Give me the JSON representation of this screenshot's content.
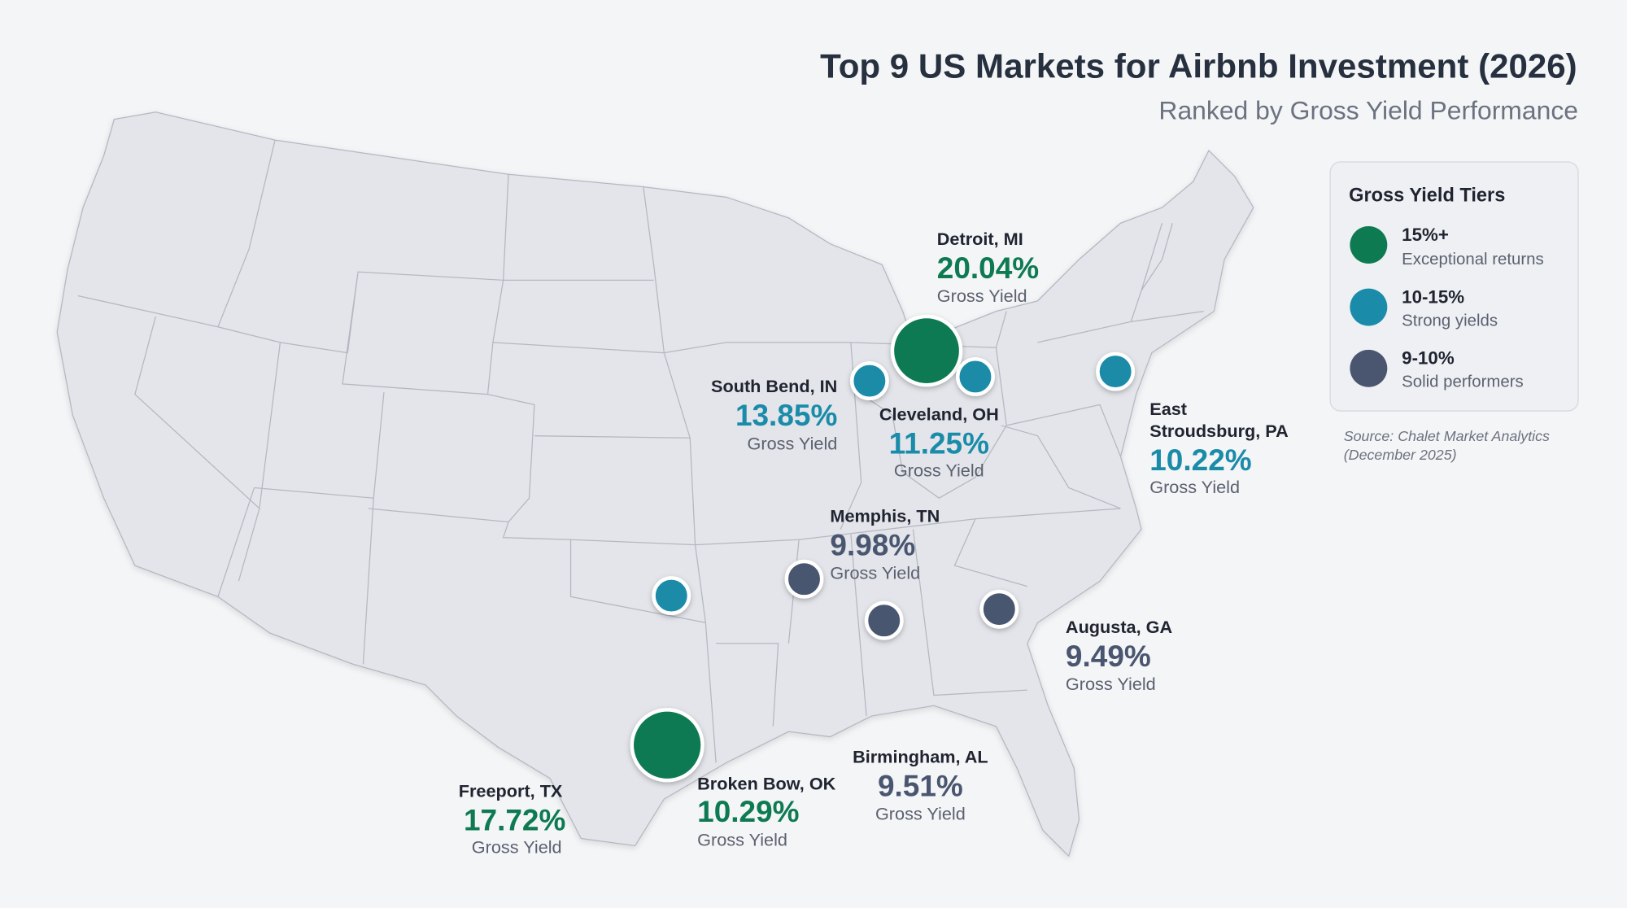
{
  "header": {
    "title": "Top 9 US Markets for Airbnb Investment (2026)",
    "subtitle": "Ranked by Gross Yield Performance"
  },
  "colors": {
    "tier_15_plus": "#0e7a52",
    "tier_10_15": "#1a8ba8",
    "tier_9_10": "#4a5670",
    "map_fill": "#e3e5ea",
    "background": "#f4f5f7"
  },
  "legend": {
    "title": "Gross Yield Tiers",
    "items": [
      {
        "range": "15%+",
        "desc": "Exceptional returns",
        "color": "#0e7a52"
      },
      {
        "range": "10-15%",
        "desc": "Strong yields",
        "color": "#1a8ba8"
      },
      {
        "range": "9-10%",
        "desc": "Solid performers",
        "color": "#4a5670"
      }
    ]
  },
  "source": {
    "line1": "Source: Chalet Market Analytics",
    "line2": "(December 2025)"
  },
  "yield_label": "Gross Yield",
  "markets": {
    "detroit": {
      "name": "Detroit, MI",
      "yield": "20.04%",
      "tier": "15%+"
    },
    "freeport": {
      "name": "Freeport, TX",
      "yield": "17.72%",
      "tier": "15%+"
    },
    "south_bend": {
      "name": "South Bend, IN",
      "yield": "13.85%",
      "tier": "10-15%"
    },
    "cleveland": {
      "name": "Cleveland, OH",
      "yield": "11.25%",
      "tier": "10-15%"
    },
    "broken_bow": {
      "name": "Broken Bow, OK",
      "yield": "10.29%",
      "tier": "10-15%"
    },
    "east_stroudsburg": {
      "name_line1": "East",
      "name_line2": "Stroudsburg, PA",
      "yield": "10.22%",
      "tier": "10-15%"
    },
    "memphis": {
      "name": "Memphis, TN",
      "yield": "9.98%",
      "tier": "9-10%"
    },
    "birmingham": {
      "name": "Birmingham, AL",
      "yield": "9.51%",
      "tier": "9-10%"
    },
    "augusta": {
      "name": "Augusta, GA",
      "yield": "9.49%",
      "tier": "9-10%"
    }
  }
}
